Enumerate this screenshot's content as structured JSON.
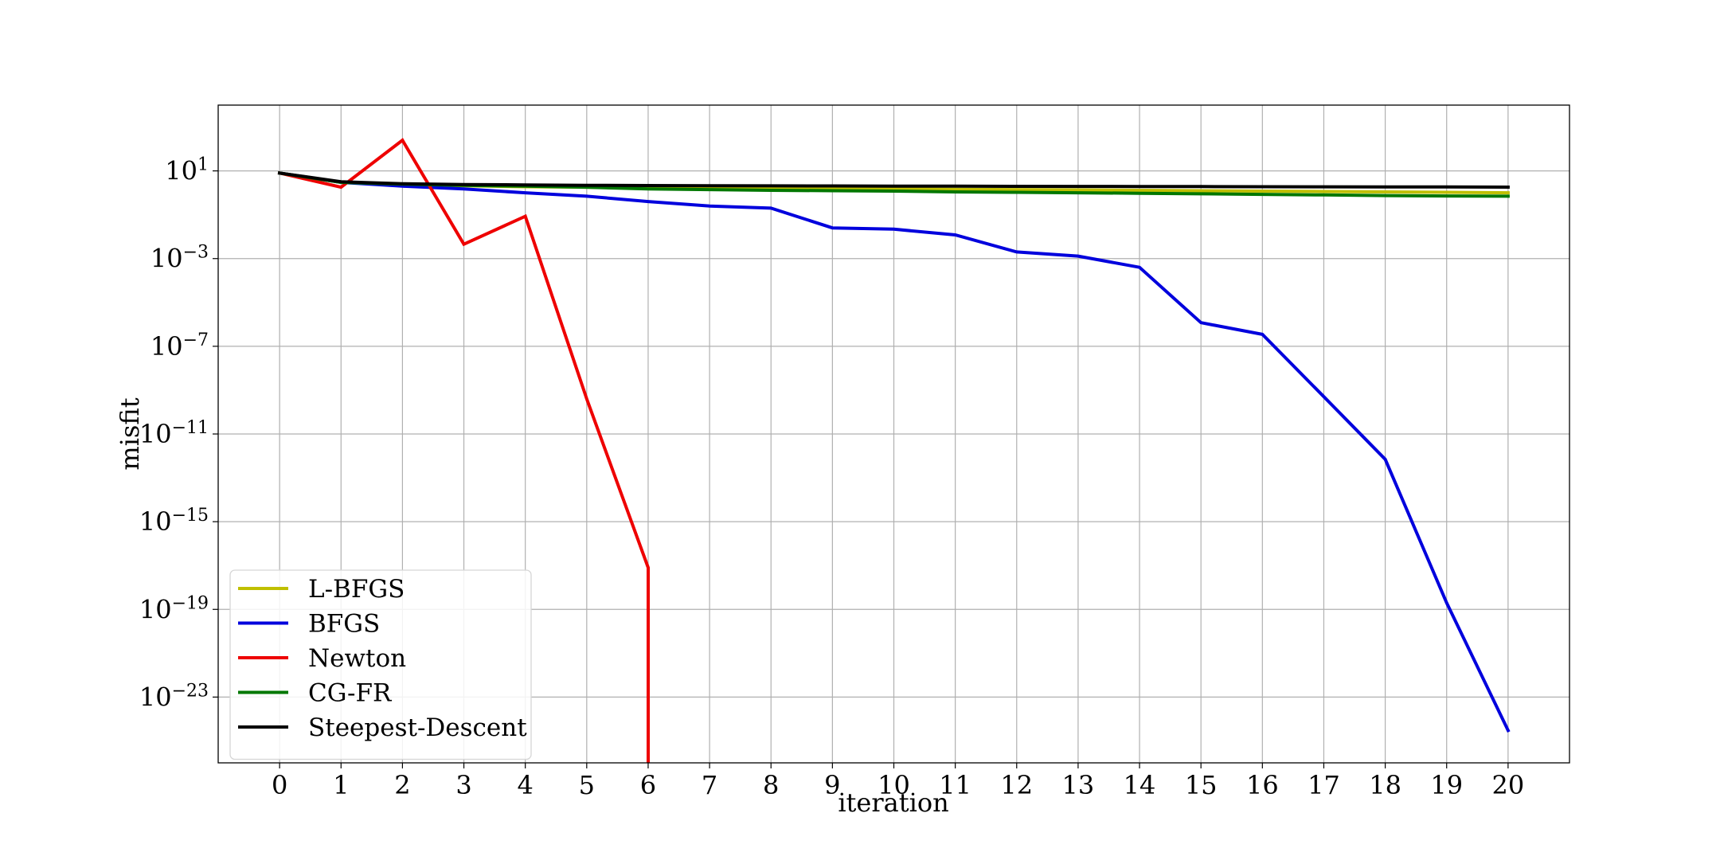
{
  "chart_data": {
    "type": "line",
    "title": "",
    "xlabel": "iteration",
    "ylabel": "misfit",
    "y_scale": "log",
    "xlim": [
      -1,
      21
    ],
    "ylim": [
      1e-26,
      10000.0
    ],
    "x_ticks": [
      0,
      1,
      2,
      3,
      4,
      5,
      6,
      7,
      8,
      9,
      10,
      11,
      12,
      13,
      14,
      15,
      16,
      17,
      18,
      19,
      20
    ],
    "y_ticks": [
      {
        "exp": 1,
        "base": "10",
        "sup": "1"
      },
      {
        "exp": -3,
        "base": "10",
        "sup": "−3"
      },
      {
        "exp": -7,
        "base": "10",
        "sup": "−7"
      },
      {
        "exp": -11,
        "base": "10",
        "sup": "−11"
      },
      {
        "exp": -15,
        "base": "10",
        "sup": "−15"
      },
      {
        "exp": -19,
        "base": "10",
        "sup": "−19"
      },
      {
        "exp": -23,
        "base": "10",
        "sup": "−23"
      }
    ],
    "grid": true,
    "legend_position": "lower-left",
    "series": [
      {
        "name": "L-BFGS",
        "color": "#bfbf00",
        "x": [
          0,
          1,
          2,
          3,
          4,
          5,
          6,
          7,
          8,
          9,
          10,
          11,
          12,
          13,
          14,
          15,
          16,
          17,
          18,
          19,
          20
        ],
        "y": [
          8.0,
          3.0,
          2.4,
          2.1,
          1.9,
          1.8,
          1.7,
          1.65,
          1.6,
          1.55,
          1.5,
          1.45,
          1.4,
          1.35,
          1.3,
          1.25,
          1.2,
          1.15,
          1.1,
          1.05,
          1.0
        ]
      },
      {
        "name": "BFGS",
        "color": "#0000dd",
        "x": [
          0,
          1,
          2,
          3,
          4,
          5,
          6,
          7,
          8,
          9,
          10,
          11,
          12,
          13,
          14,
          15,
          16,
          17,
          18,
          19,
          20
        ],
        "y": [
          8.0,
          3.0,
          2.0,
          1.5,
          1.0,
          0.7,
          0.4,
          0.25,
          0.2,
          0.025,
          0.022,
          0.012,
          0.002,
          0.0013,
          0.0004,
          1.2e-06,
          3.5e-07,
          5e-10,
          7e-13,
          2e-19,
          3e-25
        ]
      },
      {
        "name": "Newton",
        "color": "#ee0000",
        "x": [
          0,
          1,
          2,
          3,
          4,
          5,
          6,
          6
        ],
        "y": [
          8.0,
          1.8,
          250.0,
          0.0045,
          0.085,
          4e-10,
          8e-18,
          1e-30
        ]
      },
      {
        "name": "CG-FR",
        "color": "#007700",
        "x": [
          0,
          1,
          2,
          3,
          4,
          5,
          6,
          7,
          8,
          9,
          10,
          11,
          12,
          13,
          14,
          15,
          16,
          17,
          18,
          19,
          20
        ],
        "y": [
          8.0,
          3.0,
          2.5,
          2.2,
          2.0,
          1.8,
          1.5,
          1.4,
          1.3,
          1.25,
          1.2,
          1.1,
          1.05,
          1.0,
          0.95,
          0.9,
          0.85,
          0.8,
          0.75,
          0.72,
          0.7
        ]
      },
      {
        "name": "Steepest-Descent",
        "color": "#000000",
        "x": [
          0,
          1,
          2,
          3,
          4,
          5,
          6,
          7,
          8,
          9,
          10,
          11,
          12,
          13,
          14,
          15,
          16,
          17,
          18,
          19,
          20
        ],
        "y": [
          8.0,
          3.2,
          2.6,
          2.4,
          2.3,
          2.2,
          2.15,
          2.1,
          2.08,
          2.05,
          2.02,
          2.0,
          1.98,
          1.96,
          1.94,
          1.92,
          1.9,
          1.88,
          1.86,
          1.84,
          1.82
        ]
      }
    ]
  }
}
